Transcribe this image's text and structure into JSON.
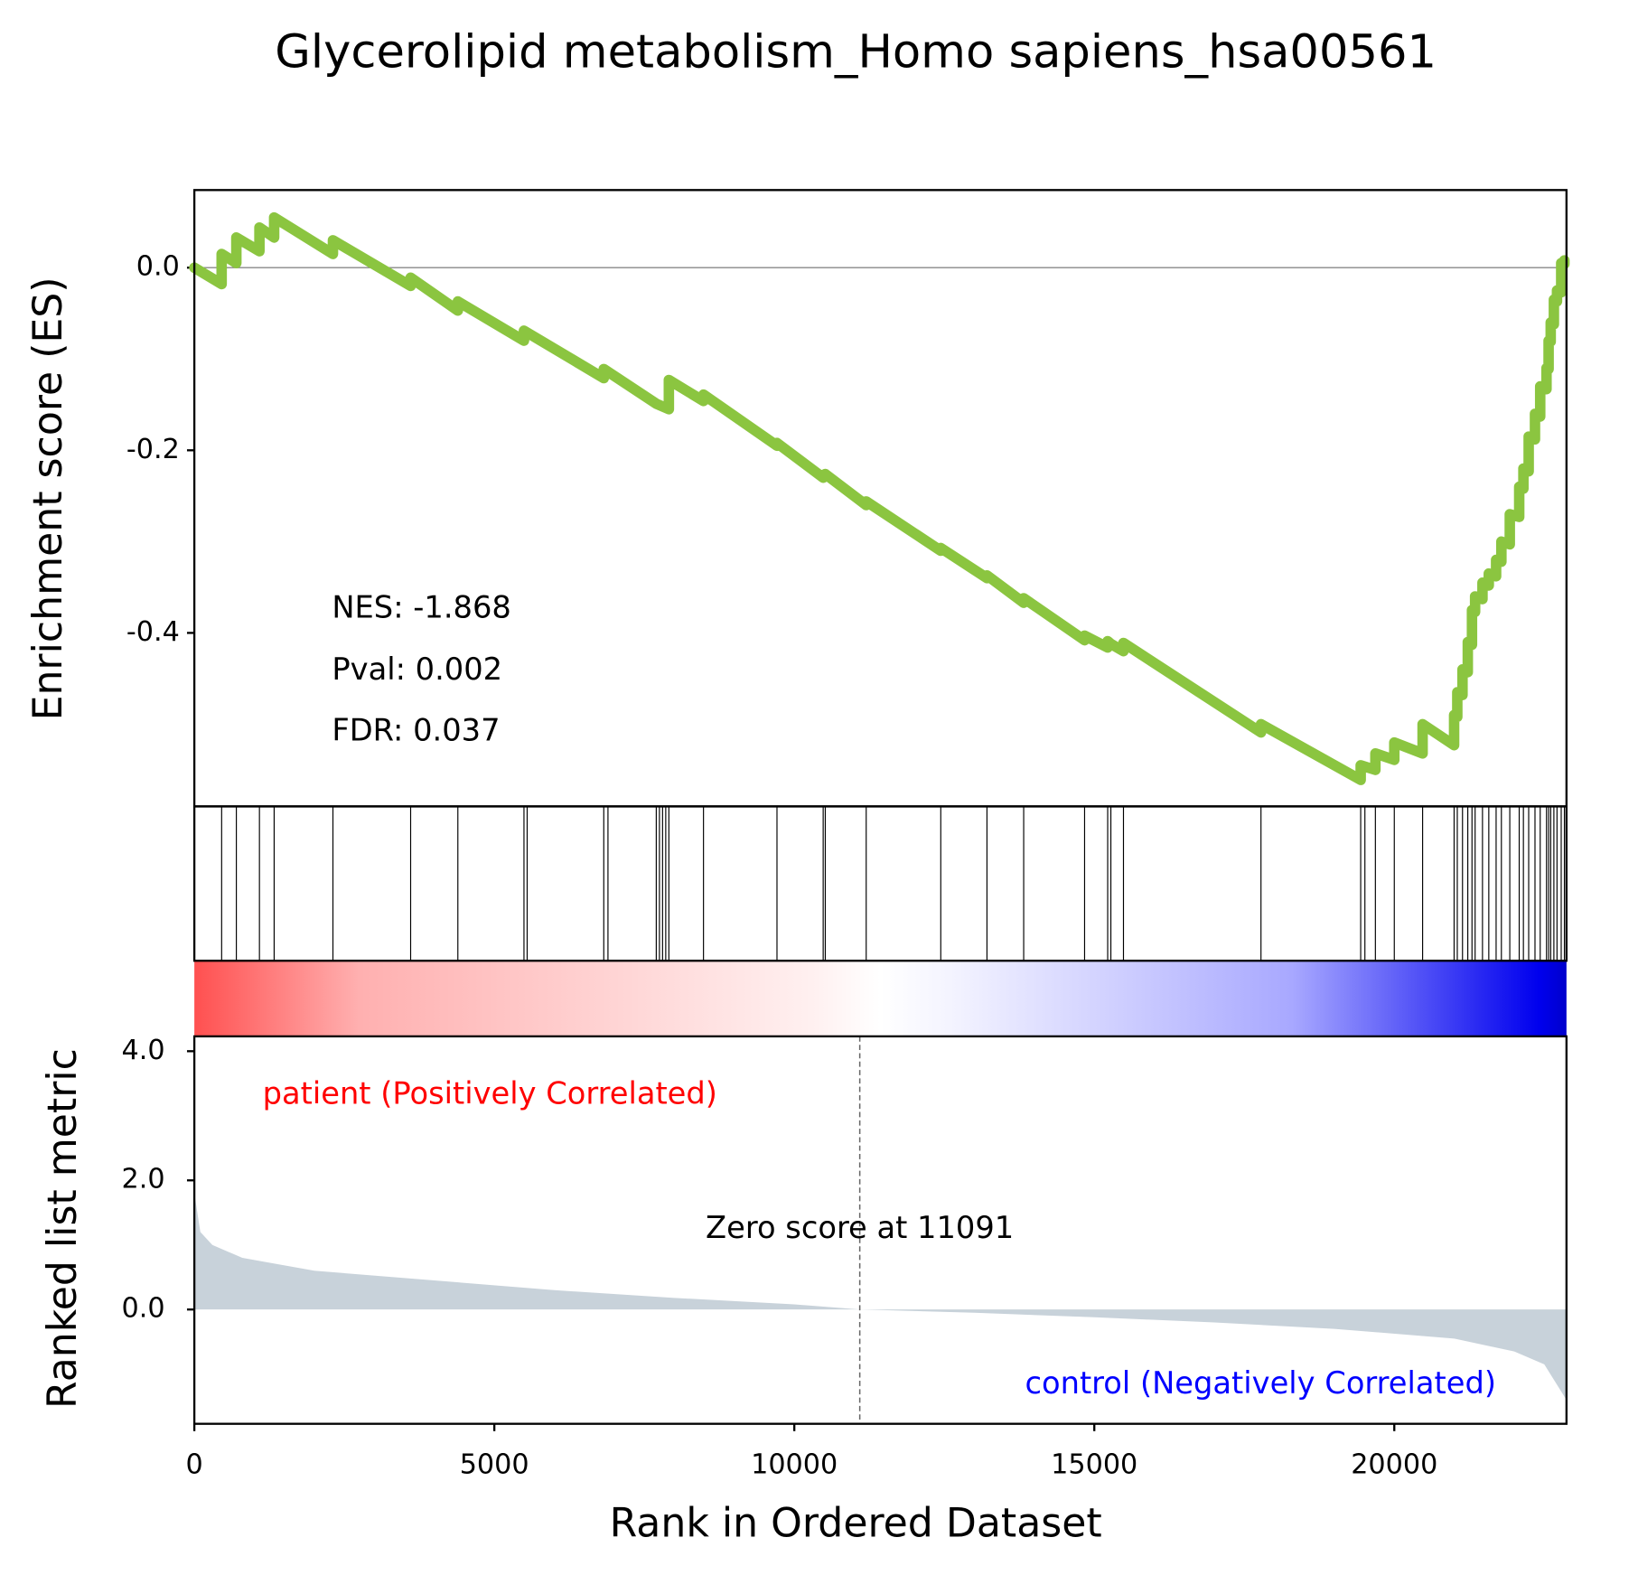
{
  "chart_data": {
    "type": "gsea",
    "title": "Glycerolipid metabolism_Homo sapiens_hsa00561",
    "xlabel": "Rank in Ordered Dataset",
    "es_ylabel": "Enrichment score (ES)",
    "metric_ylabel": "Ranked list metric",
    "xlim": [
      0,
      22870
    ],
    "xticks": [
      0,
      5000,
      10000,
      15000,
      20000
    ],
    "es_ylim": [
      -0.59,
      0.085
    ],
    "es_yticks": [
      {
        "value": 0,
        "label": "0.0"
      },
      -0.2,
      -0.4
    ],
    "metric_ylim": [
      -1.77,
      4.23
    ],
    "metric_yticks": [
      {
        "value": 4,
        "label": "4.0"
      },
      {
        "value": 2,
        "label": "2.0"
      },
      {
        "value": 0,
        "label": "0.0"
      }
    ],
    "es_color": "#8bc540",
    "metric_color": "#c8d2da",
    "annotations": [
      "NES: -1.868",
      "Pval: 0.002",
      "FDR: 0.037"
    ],
    "pos_label": "patient (Positively Correlated)",
    "neg_label": "control (Negatively Correlated)",
    "zero_score": 11091,
    "zero_score_label": "Zero score at 11091",
    "es": {
      "x": [
        0,
        455,
        455,
        700,
        700,
        1085,
        1085,
        1330,
        1330,
        2310,
        2310,
        3605,
        3605,
        4392,
        4392,
        5494,
        5494,
        6824,
        6824,
        7699,
        7909,
        7909,
        8486,
        8486,
        9711,
        9711,
        10481,
        10516,
        11198,
        11198,
        12441,
        12441,
        13211,
        13211,
        13823,
        13823,
        14838,
        14838,
        15223,
        15223,
        15276,
        15486,
        15486,
        17778,
        17778,
        19440,
        19440,
        19685,
        19685,
        20000,
        20000,
        20472,
        20472,
        20997,
        20997,
        21050,
        21050,
        21137,
        21137,
        21225,
        21225,
        21295,
        21295,
        21347,
        21347,
        21470,
        21470,
        21575,
        21575,
        21697,
        21697,
        21785,
        21785,
        21925,
        21925,
        22082,
        22082,
        22152,
        22152,
        22240,
        22240,
        22345,
        22345,
        22432,
        22432,
        22537,
        22537,
        22572,
        22572,
        22607,
        22607,
        22660,
        22660,
        22712,
        22712,
        22782,
        22782,
        22835,
        22835
      ],
      "y": [
        0,
        -0.018,
        0.015,
        0.005,
        0.033,
        0.018,
        0.044,
        0.033,
        0.055,
        0.015,
        0.03,
        -0.02,
        -0.011,
        -0.047,
        -0.037,
        -0.08,
        -0.069,
        -0.121,
        -0.111,
        -0.149,
        -0.155,
        -0.123,
        -0.146,
        -0.139,
        -0.195,
        -0.192,
        -0.23,
        -0.226,
        -0.26,
        -0.256,
        -0.31,
        -0.307,
        -0.34,
        -0.337,
        -0.367,
        -0.362,
        -0.408,
        -0.403,
        -0.416,
        -0.409,
        -0.412,
        -0.42,
        -0.411,
        -0.509,
        -0.5,
        -0.561,
        -0.545,
        -0.55,
        -0.532,
        -0.539,
        -0.52,
        -0.532,
        -0.5,
        -0.523,
        -0.49,
        -0.492,
        -0.465,
        -0.468,
        -0.44,
        -0.443,
        -0.41,
        -0.413,
        -0.375,
        -0.377,
        -0.36,
        -0.363,
        -0.345,
        -0.348,
        -0.335,
        -0.338,
        -0.32,
        -0.322,
        -0.3,
        -0.303,
        -0.27,
        -0.273,
        -0.24,
        -0.242,
        -0.22,
        -0.223,
        -0.185,
        -0.188,
        -0.16,
        -0.163,
        -0.13,
        -0.133,
        -0.11,
        -0.111,
        -0.08,
        -0.081,
        -0.06,
        -0.062,
        -0.035,
        -0.037,
        -0.025,
        -0.027,
        0.005,
        0.004,
        0.008
      ]
    },
    "hits": [
      455,
      700,
      1085,
      1330,
      2310,
      3605,
      4392,
      5494,
      5547,
      6824,
      6894,
      7699,
      7752,
      7804,
      7857,
      7909,
      8486,
      9711,
      10481,
      10516,
      11198,
      12441,
      13211,
      13823,
      14838,
      15223,
      15276,
      15486,
      17778,
      19440,
      19510,
      19685,
      20000,
      20472,
      20997,
      21050,
      21137,
      21225,
      21295,
      21347,
      21470,
      21575,
      21697,
      21785,
      21925,
      22082,
      22152,
      22240,
      22345,
      22432,
      22537,
      22572,
      22607,
      22660,
      22712,
      22782,
      22835
    ],
    "metric": {
      "x": [
        0,
        100,
        300,
        800,
        2000,
        4000,
        6000,
        8000,
        10000,
        11091,
        13000,
        15000,
        17000,
        19000,
        21000,
        22000,
        22500,
        22870
      ],
      "y": [
        1.8,
        1.2,
        1.0,
        0.8,
        0.6,
        0.45,
        0.3,
        0.18,
        0.08,
        0,
        -0.05,
        -0.12,
        -0.2,
        -0.3,
        -0.45,
        -0.65,
        -0.85,
        -1.4
      ]
    }
  }
}
